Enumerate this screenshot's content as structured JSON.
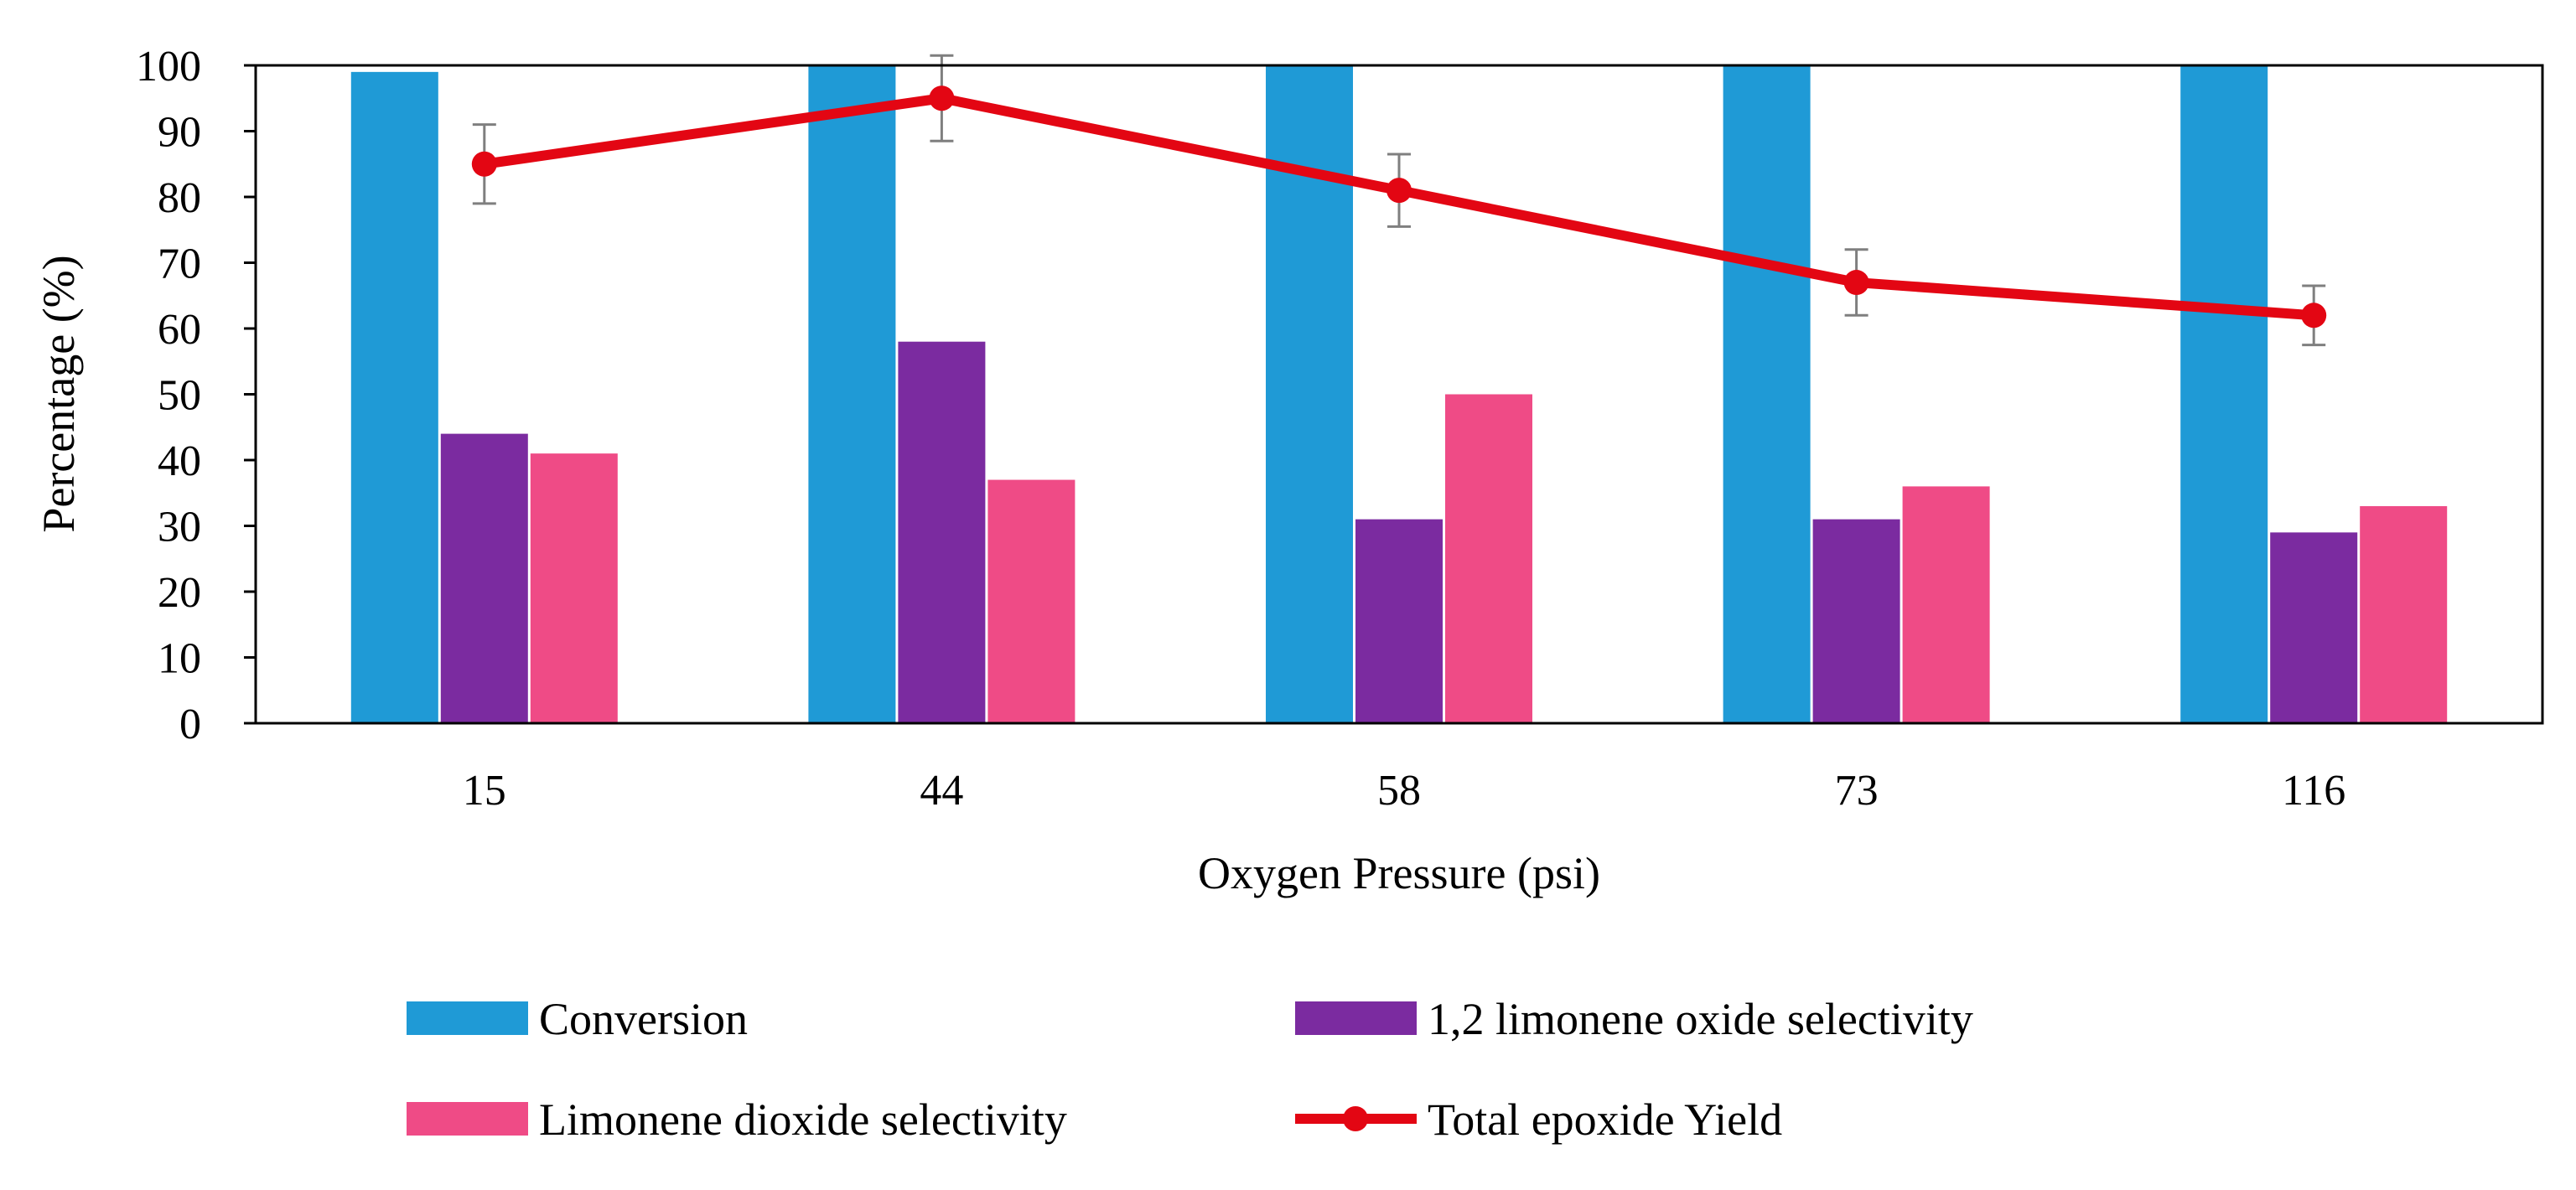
{
  "chart_data": {
    "type": "bar",
    "xlabel": "Oxygen Pressure (psi)",
    "ylabel": "Percentage (%)",
    "ylim": [
      0,
      100
    ],
    "yticks": [
      0,
      10,
      20,
      30,
      40,
      50,
      60,
      70,
      80,
      90,
      100
    ],
    "categories": [
      "15",
      "44",
      "58",
      "73",
      "116"
    ],
    "grid": false,
    "legend_position": "bottom",
    "series": [
      {
        "name": "Conversion",
        "kind": "bar",
        "color": "#1f9ad6",
        "values": [
          99,
          100,
          100,
          100,
          100
        ]
      },
      {
        "name": "1,2 limonene oxide selectivity",
        "kind": "bar",
        "color": "#7b2ba0",
        "values": [
          44,
          58,
          31,
          31,
          29
        ]
      },
      {
        "name": "Limonene dioxide selectivity",
        "kind": "bar",
        "color": "#ef4b86",
        "values": [
          41,
          37,
          50,
          36,
          33
        ]
      },
      {
        "name": "Total epoxide Yield",
        "kind": "line",
        "color": "#e30613",
        "values": [
          85,
          95,
          81,
          67,
          62
        ],
        "error": [
          6,
          6.5,
          5.5,
          5,
          4.5
        ]
      }
    ]
  }
}
